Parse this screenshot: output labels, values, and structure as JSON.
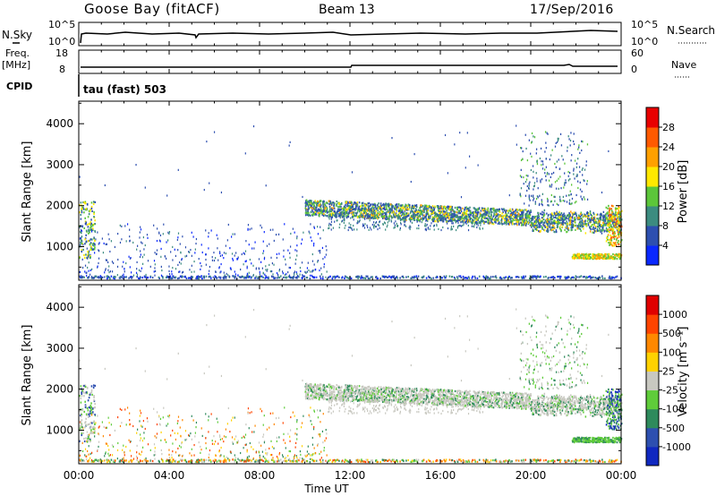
{
  "header": {
    "station": "Goose Bay (fitACF)",
    "beam": "Beam 13",
    "date": "17/Sep/2016"
  },
  "nsky_panel": {
    "left_label": "N.Sky",
    "right_label": "N.Search",
    "left_ticks": [
      "10^5",
      "10^0"
    ],
    "right_ticks": [
      "10^5",
      "10^0"
    ]
  },
  "freq_panel": {
    "left_label_1": "Freq.",
    "left_label_2": "[MHz]",
    "right_label": "Nave",
    "left_ticks": [
      "18",
      "8"
    ],
    "right_ticks": [
      "60",
      "0"
    ]
  },
  "cpid_panel": {
    "label": "CPID",
    "text": "tau (fast) 503"
  },
  "chart_data": [
    {
      "type": "heatmap",
      "quantity": "Power",
      "colorbar_label": "Power [dB]",
      "colorbar_ticks": [
        "4",
        "8",
        "12",
        "16",
        "20",
        "24",
        "28"
      ],
      "colors": [
        "#0a28ff",
        "#2d4fb0",
        "#3c8c80",
        "#5cc63a",
        "#ffe800",
        "#ffa000",
        "#ff5a00",
        "#e80000"
      ],
      "ylabel": "Slant Range [km]",
      "yticks": [
        "1000",
        "2000",
        "3000",
        "4000"
      ],
      "ylim": [
        180,
        4550
      ],
      "xlim": [
        0,
        24
      ]
    },
    {
      "type": "heatmap",
      "quantity": "Velocity",
      "colorbar_label": "Velocity [m s⁻¹]",
      "colorbar_ticks": [
        "1000",
        "500",
        "100",
        "25",
        "-25",
        "-100",
        "-500",
        "-1000"
      ],
      "colors": [
        "#1028c0",
        "#2d4fb0",
        "#2e8a5c",
        "#5fcc3a",
        "#c8c8c0",
        "#ffd200",
        "#ff8800",
        "#ff4400",
        "#e00000"
      ],
      "ylabel": "Slant Range [km]",
      "yticks": [
        "1000",
        "2000",
        "3000",
        "4000"
      ],
      "ylim": [
        180,
        4550
      ],
      "xlim": [
        0,
        24
      ]
    }
  ],
  "xaxis": {
    "ticks": [
      "00:00",
      "04:00",
      "08:00",
      "12:00",
      "16:00",
      "20:00",
      "00:00"
    ],
    "label": "Time UT"
  }
}
